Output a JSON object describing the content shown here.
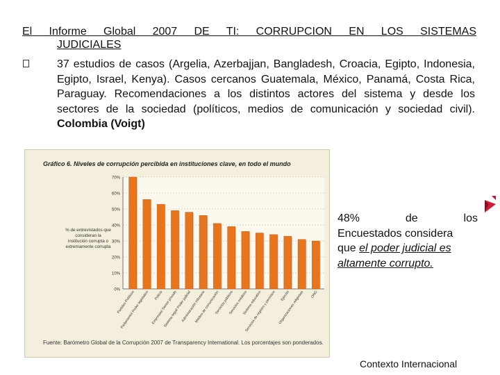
{
  "slide": {
    "heading_line1": "El Informe Global 2007 DE TI: CORRUPCION EN LOS SISTEMAS",
    "heading_line2": "JUDICIALES",
    "bullet_text": "37 estudios de casos (Argelia, Azerbajjan, Bangladesh, Croacia, Egipto, Indonesia, Egipto, Israel, Kenya). Casos cercanos Guatemala, México, Panamá, Costa Rica, Paraguay. Recomendaciones a los distintos actores del sistema y desde los sectores de la sociedad (políticos, medios de comunicación y sociedad civil).",
    "bullet_bold": "Colombia (Voigt)",
    "callout_w1": "48%",
    "callout_w2": "de",
    "callout_w3": "los",
    "callout_line2": "Encuestados considera",
    "callout_line3_plain": "que ",
    "callout_line3_em": "el poder judicial es",
    "callout_line4_em": "altamente corrupto.",
    "footer": "Contexto Internacional",
    "bullet_icon": "checkbox-bullet-icon",
    "corner_icon": "chevron-right-icon",
    "accent_color": "#c8102e"
  },
  "chart_data": {
    "type": "bar",
    "title": "Gráfico 6. Niveles de corrupción percibida en instituciones clave, en todo el mundo",
    "ylabel": "% de entrevistados que consideran la institución corrupta o extremamente corrupta",
    "ylim": [
      0,
      70
    ],
    "yticks": [
      "0%",
      "10%",
      "20%",
      "30%",
      "40%",
      "50%",
      "60%",
      "70%"
    ],
    "categories": [
      "Partidos Políticos",
      "Parlamento/ Poder legislativo",
      "Policía",
      "Empresas/ Sector privado",
      "Sistema legal/ Poder judicial",
      "Administración tributaria",
      "Medios de comunicación",
      "Servicios públicos",
      "Servicios médicos",
      "Sistema educativo",
      "Servicios de registro y permisos",
      "Ejército",
      "Organizaciones religiosas",
      "ONG"
    ],
    "values": [
      70,
      56,
      53,
      49,
      48,
      46,
      41,
      39,
      36,
      35,
      34,
      33,
      31,
      30
    ],
    "bar_color": "#e8741c",
    "source": "Fuente: Barómetro Global de la Corrupción 2007 de Transparency International. Los porcentajes son ponderados."
  }
}
